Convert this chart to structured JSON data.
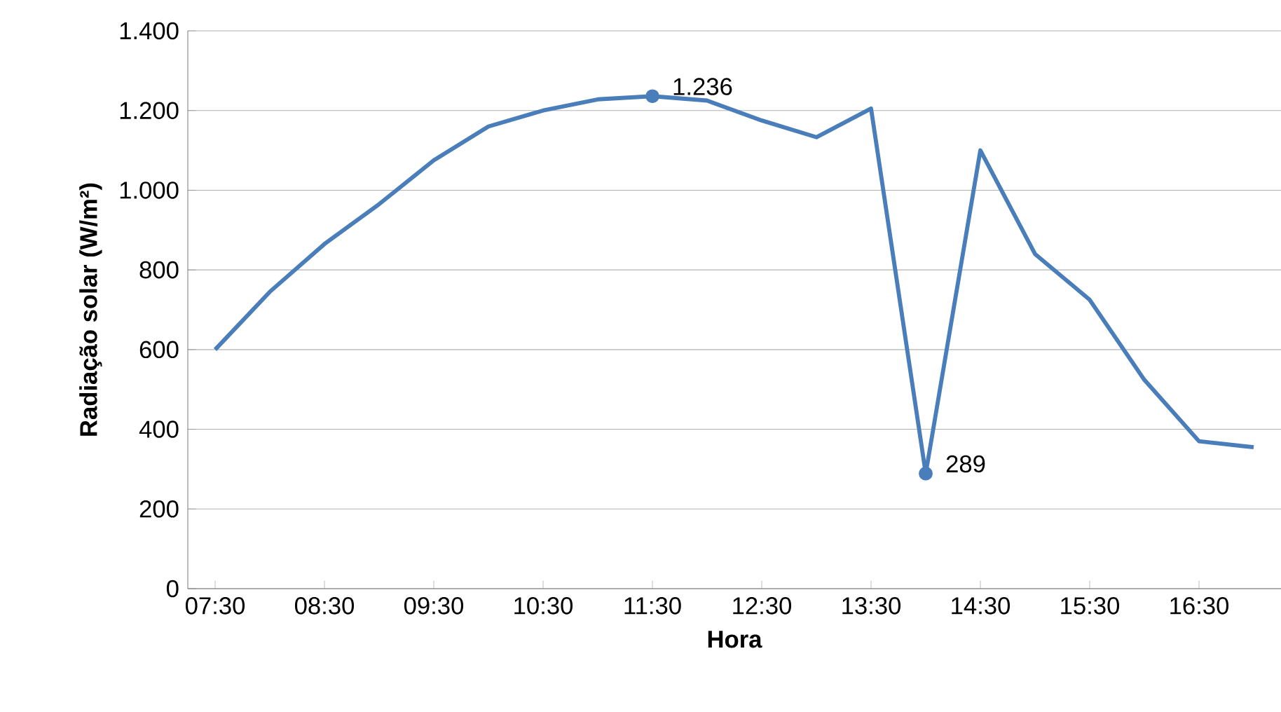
{
  "chart_data": {
    "type": "line",
    "xlabel": "Hora",
    "ylabel": "Radiação solar (W/m²)",
    "categories": [
      "07:30",
      null,
      "08:30",
      null,
      "09:30",
      null,
      "10:30",
      null,
      "11:30",
      null,
      "12:30",
      null,
      "13:30",
      null,
      "14:30",
      null,
      "15:30",
      null,
      "16:30",
      null
    ],
    "values": [
      600,
      745,
      865,
      965,
      1075,
      1160,
      1200,
      1228,
      1236,
      1225,
      1175,
      1133,
      1205,
      289,
      1100,
      840,
      725,
      524,
      370,
      355
    ],
    "value_labels": [
      null,
      null,
      null,
      null,
      null,
      null,
      null,
      null,
      "1.236",
      null,
      null,
      null,
      null,
      "289",
      null,
      null,
      null,
      null,
      null,
      null
    ],
    "color": "#4a7ebb",
    "line_style": "solid",
    "grid": "y",
    "ylim": [
      0,
      1400
    ],
    "yticks": [
      0,
      200,
      400,
      600,
      800,
      {
        "value": 1000,
        "label": "1.000"
      },
      {
        "value": 1200,
        "label": "1.200"
      },
      {
        "value": 1400,
        "label": "1.400"
      }
    ]
  }
}
